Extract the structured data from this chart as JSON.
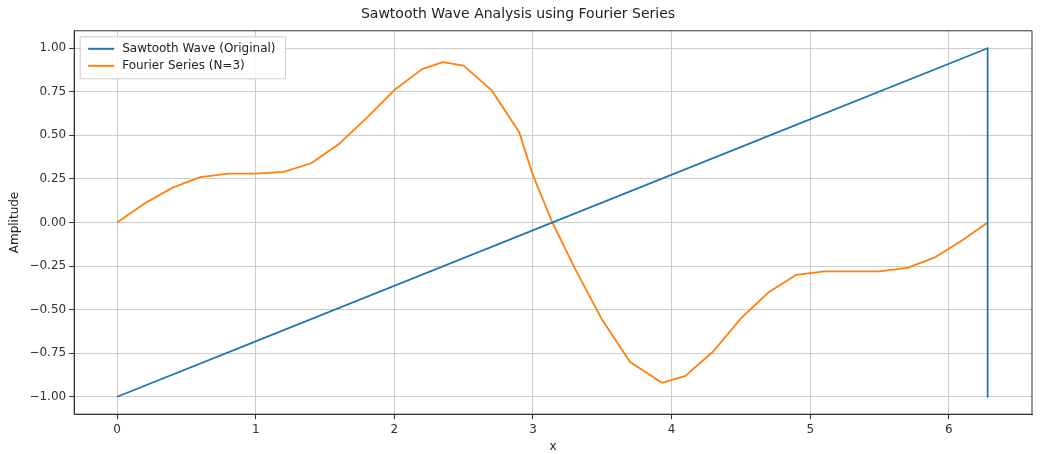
{
  "chart_data": {
    "type": "line",
    "title": "Sawtooth Wave Analysis using Fourier Series",
    "xlabel": "x",
    "ylabel": "Amplitude",
    "xlim": [
      -0.31,
      6.6
    ],
    "xticks": [
      0,
      1,
      2,
      3,
      4,
      5,
      6
    ],
    "ylim": [
      -1.1,
      1.1
    ],
    "yticks": [
      {
        "value": -1,
        "label": "−1.00"
      },
      {
        "value": -0.75,
        "label": "−0.75"
      },
      {
        "value": -0.5,
        "label": "−0.50"
      },
      {
        "value": -0.25,
        "label": "−0.25"
      },
      {
        "value": 0,
        "label": "0.00"
      },
      {
        "value": 0.25,
        "label": "0.25"
      },
      {
        "value": 0.5,
        "label": "0.50"
      },
      {
        "value": 0.75,
        "label": "0.75"
      },
      {
        "value": 1,
        "label": "1.00"
      }
    ],
    "grid": true,
    "legend": "top left",
    "marker": "none",
    "line_style": "solid",
    "series": [
      {
        "name": "Sawtooth Wave (Original)",
        "color": "#1f77b4",
        "x": [
          0,
          6.28,
          6.28
        ],
        "values": [
          -1,
          1,
          -1
        ]
      },
      {
        "name": "Fourier Series (N=3)",
        "color": "#ff7f0e",
        "x": [
          0,
          0.2,
          0.4,
          0.6,
          0.8,
          1.0,
          1.2,
          1.4,
          1.6,
          1.8,
          2.0,
          2.2,
          2.35,
          2.5,
          2.7,
          2.9,
          3.0,
          3.14,
          3.3,
          3.5,
          3.7,
          3.93,
          4.1,
          4.3,
          4.5,
          4.7,
          4.9,
          5.1,
          5.3,
          5.5,
          5.7,
          5.9,
          6.1,
          6.28
        ],
        "values": [
          0,
          0.11,
          0.2,
          0.26,
          0.28,
          0.28,
          0.29,
          0.34,
          0.45,
          0.6,
          0.76,
          0.88,
          0.92,
          0.9,
          0.76,
          0.52,
          0.27,
          0,
          -0.26,
          -0.56,
          -0.8,
          -0.92,
          -0.88,
          -0.74,
          -0.55,
          -0.4,
          -0.3,
          -0.28,
          -0.28,
          -0.28,
          -0.26,
          -0.2,
          -0.1,
          0
        ]
      }
    ]
  }
}
